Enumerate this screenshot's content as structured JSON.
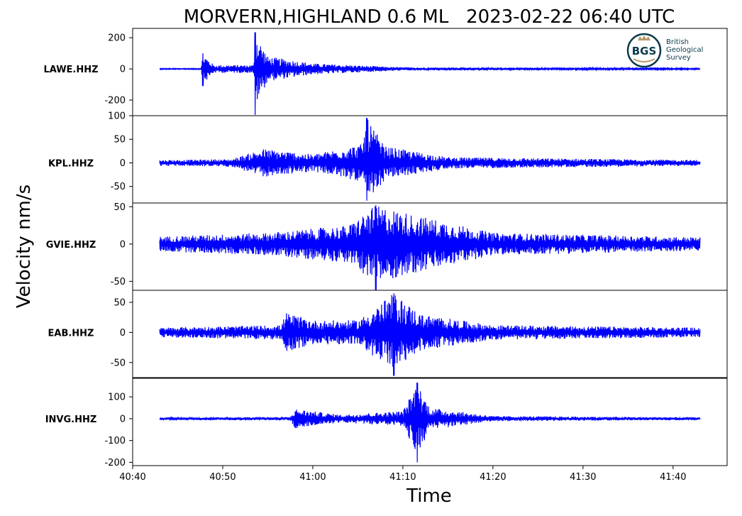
{
  "chart_data": {
    "type": "line",
    "title": "MORVERN,HIGHLAND 0.6 ML   2023-02-22 06:40 UTC",
    "xlabel": "Time",
    "ylabel": "Velocity nm/s",
    "x_ticks": [
      "40:40",
      "40:50",
      "41:00",
      "41:10",
      "41:20",
      "41:30",
      "41:40"
    ],
    "x_range_seconds_after_0640": [
      2440,
      2506
    ],
    "trace_time_range": [
      "40:43",
      "41:43"
    ],
    "line_color": "#0000ff",
    "grid": false,
    "logo": {
      "text": "BGS",
      "name_lines": [
        "British",
        "Geological",
        "Survey"
      ]
    },
    "panels": [
      {
        "station": "LAWE.HHZ",
        "ylim": [
          -300,
          260
        ],
        "yticks": [
          200,
          0,
          -200
        ],
        "ytick_labels": [
          "200",
          "0",
          "-200"
        ],
        "amplitude_envelope": [
          {
            "t": "40:43",
            "amp": 3
          },
          {
            "t": "40:47.6",
            "amp": 3
          },
          {
            "t": "40:47.8",
            "amp": 100,
            "min": -110
          },
          {
            "t": "40:49",
            "amp": 25
          },
          {
            "t": "40:53.4",
            "amp": 25
          },
          {
            "t": "40:53.6",
            "amp": 235,
            "min": -295
          },
          {
            "t": "40:55",
            "amp": 80
          },
          {
            "t": "41:00",
            "amp": 35
          },
          {
            "t": "41:10",
            "amp": 10
          },
          {
            "t": "41:43",
            "amp": 4
          }
        ]
      },
      {
        "station": "KPL.HHZ",
        "ylim": [
          -85,
          100
        ],
        "yticks": [
          100,
          50,
          0,
          -50
        ],
        "ytick_labels": [
          "100",
          "50",
          "0",
          "-50"
        ],
        "amplitude_envelope": [
          {
            "t": "40:43",
            "amp": 6
          },
          {
            "t": "40:51",
            "amp": 8
          },
          {
            "t": "40:54.5",
            "amp": 30
          },
          {
            "t": "41:00",
            "amp": 18
          },
          {
            "t": "41:05.5",
            "amp": 40
          },
          {
            "t": "41:06",
            "amp": 95,
            "min": -80
          },
          {
            "t": "41:08",
            "amp": 35
          },
          {
            "t": "41:15",
            "amp": 12
          },
          {
            "t": "41:43",
            "amp": 6
          }
        ]
      },
      {
        "station": "GVIE.HHZ",
        "ylim": [
          -62,
          55
        ],
        "yticks": [
          50,
          0,
          -50
        ],
        "ytick_labels": [
          "50",
          "0",
          "-50"
        ],
        "amplitude_envelope": [
          {
            "t": "40:43",
            "amp": 10
          },
          {
            "t": "40:55",
            "amp": 15
          },
          {
            "t": "41:04",
            "amp": 25
          },
          {
            "t": "41:07",
            "amp": 52,
            "min": -62
          },
          {
            "t": "41:11",
            "amp": 40
          },
          {
            "t": "41:20",
            "amp": 15
          },
          {
            "t": "41:43",
            "amp": 9
          }
        ]
      },
      {
        "station": "EAB.HHZ",
        "ylim": [
          -75,
          70
        ],
        "yticks": [
          50,
          0,
          -50
        ],
        "ytick_labels": [
          "50",
          "0",
          "-50"
        ],
        "amplitude_envelope": [
          {
            "t": "40:43",
            "amp": 8
          },
          {
            "t": "40:56.5",
            "amp": 12
          },
          {
            "t": "40:57",
            "amp": 33
          },
          {
            "t": "41:00",
            "amp": 20
          },
          {
            "t": "41:05",
            "amp": 20
          },
          {
            "t": "41:09",
            "amp": 65,
            "min": -72
          },
          {
            "t": "41:12",
            "amp": 30
          },
          {
            "t": "41:20",
            "amp": 12
          },
          {
            "t": "41:43",
            "amp": 8
          }
        ]
      },
      {
        "station": "INVG.HHZ",
        "ylim": [
          -215,
          185
        ],
        "yticks": [
          100,
          0,
          -100,
          -200
        ],
        "ytick_labels": [
          "100",
          "0",
          "-100",
          "-200"
        ],
        "amplitude_envelope": [
          {
            "t": "40:43",
            "amp": 5
          },
          {
            "t": "40:57.5",
            "amp": 8
          },
          {
            "t": "40:58",
            "amp": 45
          },
          {
            "t": "41:03",
            "amp": 18
          },
          {
            "t": "41:10",
            "amp": 35
          },
          {
            "t": "41:11.6",
            "amp": 165,
            "min": -200
          },
          {
            "t": "41:13",
            "amp": 50
          },
          {
            "t": "41:20",
            "amp": 12
          },
          {
            "t": "41:43",
            "amp": 6
          }
        ]
      }
    ]
  }
}
